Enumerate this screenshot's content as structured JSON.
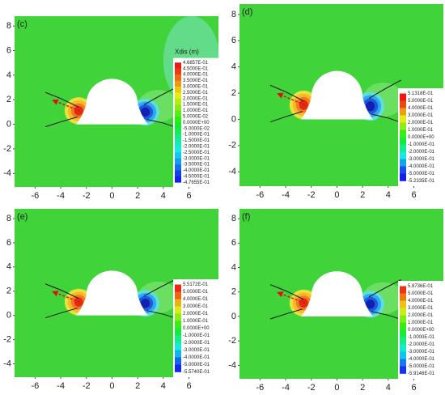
{
  "chart_data": [
    {
      "type": "contour",
      "panel_label": "(c)",
      "xlim": [
        -7.6,
        8.3
      ],
      "ylim": [
        -5.1,
        8.8
      ],
      "xticks": [
        -6,
        -4,
        -2,
        0,
        2,
        4,
        6
      ],
      "yticks": [
        -4,
        -2,
        0,
        2,
        4,
        6,
        8
      ],
      "colorbar_title": "Xdis (m)",
      "colorbar": [
        {
          "value": 0.46857,
          "label": "4.6857E-01"
        },
        {
          "value": 0.45,
          "label": "4.5000E-01"
        },
        {
          "value": 0.4,
          "label": "4.0000E-01"
        },
        {
          "value": 0.35,
          "label": "3.5000E-01"
        },
        {
          "value": 0.3,
          "label": "3.0000E-01"
        },
        {
          "value": 0.25,
          "label": "2.5000E-01"
        },
        {
          "value": 0.2,
          "label": "2.0000E-01"
        },
        {
          "value": 0.15,
          "label": "1.5000E-01"
        },
        {
          "value": 0.1,
          "label": "1.0000E-01"
        },
        {
          "value": 0.05,
          "label": "5.0000E-02"
        },
        {
          "value": 0,
          "label": "0.0000E+00"
        },
        {
          "value": -0.05,
          "label": "-5.0000E-02"
        },
        {
          "value": -0.1,
          "label": "-1.0000E-01"
        },
        {
          "value": -0.15,
          "label": "-1.5000E-01"
        },
        {
          "value": -0.2,
          "label": "-2.0000E-01"
        },
        {
          "value": -0.25,
          "label": "-2.5000E-01"
        },
        {
          "value": -0.3,
          "label": "-3.0000E-01"
        },
        {
          "value": -0.35,
          "label": "-3.5000E-01"
        },
        {
          "value": -0.4,
          "label": "-4.0000E-01"
        },
        {
          "value": -0.45,
          "label": "-4.5000E-01"
        },
        {
          "value": -0.47655,
          "label": "-4.7655E-01"
        }
      ]
    },
    {
      "type": "contour",
      "panel_label": "(d)",
      "xlim": [
        -7.6,
        8.3
      ],
      "ylim": [
        -5.1,
        8.8
      ],
      "xticks": [
        -6,
        -4,
        -2,
        0,
        2,
        4,
        6
      ],
      "yticks": [
        -4,
        -2,
        0,
        2,
        4,
        6,
        8
      ],
      "colorbar": [
        {
          "value": 0.51318,
          "label": "5.1318E-01"
        },
        {
          "value": 0.5,
          "label": "5.0000E-01"
        },
        {
          "value": 0.4,
          "label": "4.0000E-01"
        },
        {
          "value": 0.3,
          "label": "3.0000E-01"
        },
        {
          "value": 0.2,
          "label": "2.0000E-01"
        },
        {
          "value": 0.1,
          "label": "1.0000E-01"
        },
        {
          "value": 0,
          "label": "0.0000E+00"
        },
        {
          "value": -0.1,
          "label": "-1.0000E-01"
        },
        {
          "value": -0.2,
          "label": "-2.0000E-01"
        },
        {
          "value": -0.3,
          "label": "-3.0000E-01"
        },
        {
          "value": -0.4,
          "label": "-4.0000E-01"
        },
        {
          "value": -0.5,
          "label": "-5.0000E-01"
        },
        {
          "value": -0.52335,
          "label": "-5.2335E-01"
        }
      ]
    },
    {
      "type": "contour",
      "panel_label": "(e)",
      "xlim": [
        -7.6,
        8.3
      ],
      "ylim": [
        -5.1,
        8.8
      ],
      "xticks": [
        -6,
        -4,
        -2,
        0,
        2,
        4,
        6
      ],
      "yticks": [
        -4,
        -2,
        0,
        2,
        4,
        6,
        8
      ],
      "colorbar": [
        {
          "value": 0.55172,
          "label": "5.5172E-01"
        },
        {
          "value": 0.5,
          "label": "5.0000E-01"
        },
        {
          "value": 0.4,
          "label": "4.0000E-01"
        },
        {
          "value": 0.3,
          "label": "3.0000E-01"
        },
        {
          "value": 0.2,
          "label": "2.0000E-01"
        },
        {
          "value": 0.1,
          "label": "1.0000E-01"
        },
        {
          "value": 0,
          "label": "0.0000E+00"
        },
        {
          "value": -0.1,
          "label": "-1.0000E-01"
        },
        {
          "value": -0.2,
          "label": "-2.0000E-01"
        },
        {
          "value": -0.3,
          "label": "-3.0000E-01"
        },
        {
          "value": -0.4,
          "label": "-4.0000E-01"
        },
        {
          "value": -0.5,
          "label": "-5.0000E-01"
        },
        {
          "value": -0.5574,
          "label": "-5.5740E-01"
        }
      ]
    },
    {
      "type": "contour",
      "panel_label": "(f)",
      "xlim": [
        -7.6,
        8.3
      ],
      "ylim": [
        -5.1,
        8.8
      ],
      "xticks": [
        -6,
        -4,
        -2,
        0,
        2,
        4,
        6
      ],
      "yticks": [
        -4,
        -2,
        0,
        2,
        4,
        6,
        8
      ],
      "colorbar": [
        {
          "value": 0.58736,
          "label": "5.8736E-01"
        },
        {
          "value": 0.5,
          "label": "5.0000E-01"
        },
        {
          "value": 0.4,
          "label": "4.0000E-01"
        },
        {
          "value": 0.3,
          "label": "3.0000E-01"
        },
        {
          "value": 0.2,
          "label": "2.0000E-01"
        },
        {
          "value": 0.1,
          "label": "1.0000E-01"
        },
        {
          "value": 0,
          "label": "0.0000E+00"
        },
        {
          "value": -0.1,
          "label": "-1.0000E-01"
        },
        {
          "value": -0.2,
          "label": "-2.0000E-01"
        },
        {
          "value": -0.3,
          "label": "-3.0000E-01"
        },
        {
          "value": -0.4,
          "label": "-4.0000E-01"
        },
        {
          "value": -0.5,
          "label": "-5.0000E-01"
        },
        {
          "value": -0.59146,
          "label": "-5.9146E-01"
        }
      ]
    }
  ]
}
